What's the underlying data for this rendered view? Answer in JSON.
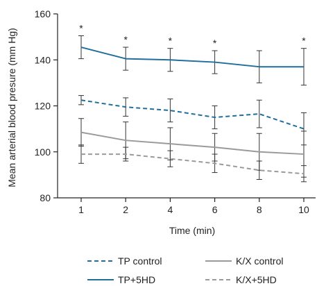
{
  "chart_data": {
    "type": "line",
    "xlabel": "Time (min)",
    "ylabel": "Mean arterial blood presure (mm Hg)",
    "x": [
      1,
      2,
      4,
      6,
      8,
      10
    ],
    "xticks": [
      "1",
      "2",
      "4",
      "6",
      "8",
      "10"
    ],
    "ylim": [
      80,
      160
    ],
    "yticks": [
      80,
      100,
      120,
      140,
      160
    ],
    "grid": false,
    "legend_position": "bottom",
    "significance_marker": "*",
    "significant_at": [
      "1",
      "2",
      "4",
      "6",
      "10"
    ],
    "series": [
      {
        "name": "TP+5HD",
        "color": "#1f6e9c",
        "dash": "solid",
        "values": [
          145.5,
          140.5,
          140,
          139,
          137,
          137
        ],
        "errors": [
          5,
          5,
          5,
          5,
          7,
          8
        ]
      },
      {
        "name": "TP control",
        "color": "#1f6e9c",
        "dash": "dashed",
        "values": [
          122.5,
          119.5,
          118,
          115,
          116.5,
          110
        ],
        "errors": [
          2,
          4,
          5,
          5,
          6,
          7
        ]
      },
      {
        "name": "K/X control",
        "color": "#9a9a9a",
        "dash": "solid",
        "values": [
          108.5,
          105,
          103.5,
          102,
          100,
          99
        ],
        "errors": [
          6,
          8,
          7,
          6,
          8,
          10
        ]
      },
      {
        "name": "K/X+5HD",
        "color": "#9a9a9a",
        "dash": "dashed",
        "values": [
          99,
          99,
          97,
          95,
          92,
          90.5
        ],
        "errors": [
          4,
          3,
          3.5,
          4,
          4,
          3.5
        ]
      }
    ]
  },
  "legend": {
    "tp_control": "TP control",
    "kx_control": "K/X control",
    "tp_5hd": "TP+5HD",
    "kx_5hd": "K/X+5HD"
  }
}
